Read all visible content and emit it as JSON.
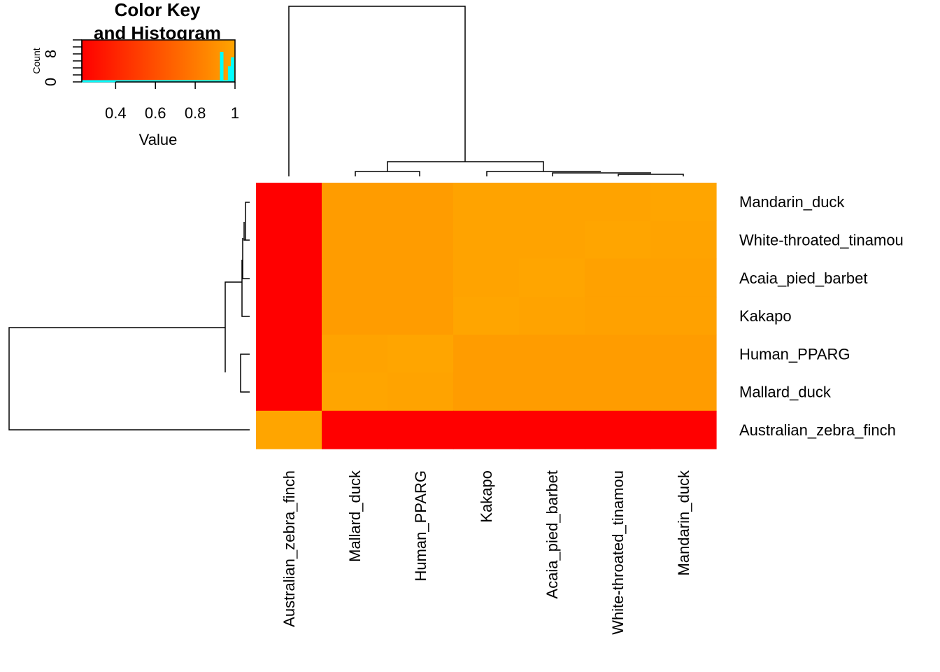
{
  "chart_data": {
    "type": "heatmap",
    "key": {
      "title_line1": "Color Key",
      "title_line2": "and Histogram",
      "x_label": "Value",
      "y_label": "Count",
      "x_ticks": [
        "0.4",
        "0.6",
        "0.8",
        "1"
      ],
      "x_tick_values": [
        0.4,
        0.6,
        0.8,
        1.0
      ],
      "y_ticks": [
        "0",
        "8"
      ],
      "y_tick_values": [
        0,
        8
      ],
      "x_range": [
        0.23,
        1.0
      ],
      "y_range": [
        0,
        12
      ],
      "histogram": [
        {
          "x": 0.935,
          "count": 8.6
        },
        {
          "x": 0.975,
          "count": 4.5
        },
        {
          "x": 1.0,
          "count": 7
        }
      ],
      "color_low": "#FF0000",
      "color_high": "#FFA500",
      "histogram_color": "#00FFFF"
    },
    "columns": [
      "Australian_zebra_finch",
      "Mallard_duck",
      "Human_PPARG",
      "Kakapo",
      "Acaia_pied_barbet",
      "White-throated_tinamou",
      "Mandarin_duck"
    ],
    "rows": [
      "Mandarin_duck",
      "White-throated_tinamou",
      "Acaia_pied_barbet",
      "Kakapo",
      "Human_PPARG",
      "Mallard_duck",
      "Australian_zebra_finch"
    ],
    "values": [
      [
        0.23,
        0.96,
        0.96,
        0.99,
        0.99,
        0.99,
        1.0
      ],
      [
        0.23,
        0.96,
        0.96,
        0.99,
        0.99,
        1.0,
        0.99
      ],
      [
        0.23,
        0.96,
        0.96,
        0.99,
        1.0,
        0.98,
        0.98
      ],
      [
        0.23,
        0.96,
        0.96,
        1.0,
        0.99,
        0.98,
        0.98
      ],
      [
        0.23,
        0.99,
        1.0,
        0.96,
        0.96,
        0.96,
        0.96
      ],
      [
        0.23,
        1.0,
        0.99,
        0.96,
        0.96,
        0.96,
        0.96
      ],
      [
        1.0,
        0.23,
        0.23,
        0.23,
        0.23,
        0.23,
        0.23
      ]
    ]
  }
}
